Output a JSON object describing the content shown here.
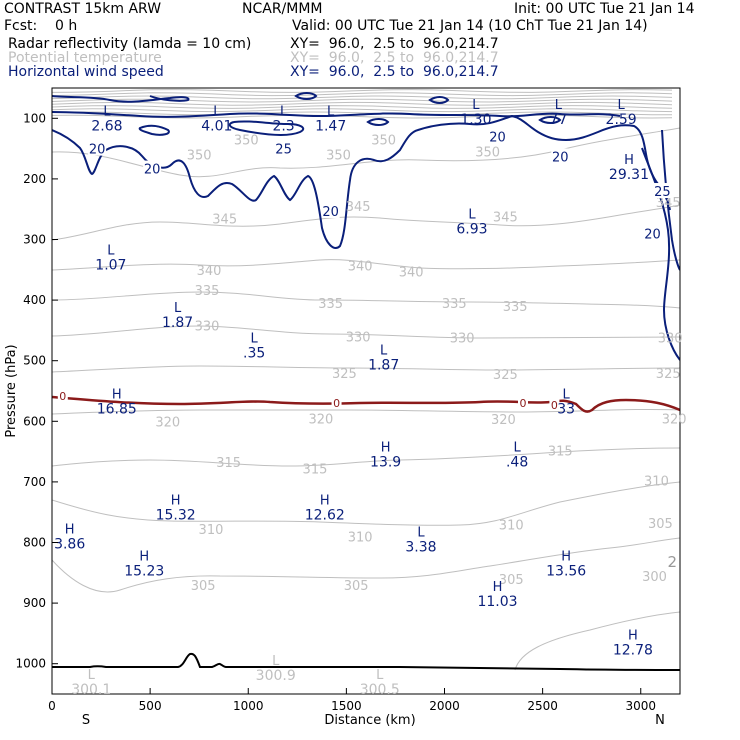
{
  "header": {
    "model": "CONTRAST 15km ARW",
    "org": "NCAR/MMM",
    "init": "Init: 00 UTC Tue 21 Jan 14",
    "fcst": "Fcst:    0 h",
    "valid": "Valid: 00 UTC Tue 21 Jan 14 (10 ChT Tue 21 Jan 14)",
    "fields": [
      {
        "name": "Radar reflectivity (lamda = 10 cm)",
        "xy": "XY=  96.0,  2.5 to  96.0,214.7",
        "color": "#000000"
      },
      {
        "name": "Potential temperature",
        "xy": "XY=  96.0,  2.5 to  96.0,214.7",
        "color": "#bfbfbf"
      },
      {
        "name": "Horizontal wind speed",
        "xy": "XY=  96.0,  2.5 to  96.0,214.7",
        "color": "#0a1f7a"
      }
    ]
  },
  "chart_data": {
    "type": "cross-section contour",
    "xlabel": "Distance (km)",
    "ylabel": "Pressure (hPa)",
    "xlim": [
      0,
      3200
    ],
    "ylim_hpa": [
      1050,
      50
    ],
    "xticks": [
      0,
      500,
      1000,
      1500,
      2000,
      2500,
      3000
    ],
    "yticks": [
      100,
      200,
      300,
      400,
      500,
      600,
      700,
      800,
      900,
      1000
    ],
    "end_labels": {
      "left": "S",
      "right": "N"
    },
    "theta_contour_labels": [
      {
        "v": "350",
        "x": 990,
        "p": 135
      },
      {
        "v": "350",
        "x": 1690,
        "p": 135
      },
      {
        "v": "350",
        "x": 750,
        "p": 160
      },
      {
        "v": "350",
        "x": 1460,
        "p": 160
      },
      {
        "v": "350",
        "x": 2220,
        "p": 155
      },
      {
        "v": "345",
        "x": 880,
        "p": 265
      },
      {
        "v": "345",
        "x": 1560,
        "p": 245
      },
      {
        "v": "345",
        "x": 2310,
        "p": 262
      },
      {
        "v": "345",
        "x": 3140,
        "p": 238
      },
      {
        "v": "340",
        "x": 800,
        "p": 350
      },
      {
        "v": "340",
        "x": 1570,
        "p": 343
      },
      {
        "v": "340",
        "x": 1830,
        "p": 353
      },
      {
        "v": "335",
        "x": 790,
        "p": 383
      },
      {
        "v": "335",
        "x": 1420,
        "p": 405
      },
      {
        "v": "335",
        "x": 2050,
        "p": 405
      },
      {
        "v": "335",
        "x": 2360,
        "p": 410
      },
      {
        "v": "330",
        "x": 790,
        "p": 442
      },
      {
        "v": "330",
        "x": 1560,
        "p": 460
      },
      {
        "v": "330",
        "x": 2090,
        "p": 462
      },
      {
        "v": "330",
        "x": 3150,
        "p": 462
      },
      {
        "v": "325",
        "x": 1490,
        "p": 520
      },
      {
        "v": "325",
        "x": 2310,
        "p": 522
      },
      {
        "v": "325",
        "x": 3140,
        "p": 520
      },
      {
        "v": "320",
        "x": 590,
        "p": 600
      },
      {
        "v": "320",
        "x": 1370,
        "p": 595
      },
      {
        "v": "320",
        "x": 2300,
        "p": 596
      },
      {
        "v": "320",
        "x": 3170,
        "p": 595
      },
      {
        "v": "315",
        "x": 900,
        "p": 667
      },
      {
        "v": "315",
        "x": 1340,
        "p": 678
      },
      {
        "v": "315",
        "x": 2590,
        "p": 648
      },
      {
        "v": "310",
        "x": 3080,
        "p": 698
      },
      {
        "v": "310",
        "x": 810,
        "p": 778
      },
      {
        "v": "310",
        "x": 1570,
        "p": 790
      },
      {
        "v": "310",
        "x": 2340,
        "p": 770
      },
      {
        "v": "305",
        "x": 3100,
        "p": 768
      },
      {
        "v": "305",
        "x": 770,
        "p": 870
      },
      {
        "v": "305",
        "x": 1550,
        "p": 870
      },
      {
        "v": "305",
        "x": 2340,
        "p": 860
      },
      {
        "v": "300",
        "x": 3070,
        "p": 855
      }
    ],
    "wind_contour_labels": [
      {
        "v": "20",
        "x": 230,
        "p": 150
      },
      {
        "v": "20",
        "x": 510,
        "p": 183
      },
      {
        "v": "25",
        "x": 1180,
        "p": 150
      },
      {
        "v": "20",
        "x": 1420,
        "p": 253
      },
      {
        "v": "20",
        "x": 2270,
        "p": 130
      },
      {
        "v": "20",
        "x": 2590,
        "p": 163
      },
      {
        "v": "25",
        "x": 3110,
        "p": 220
      },
      {
        "v": "20",
        "x": 3060,
        "p": 290
      }
    ],
    "freezing_labels": [
      {
        "v": "0",
        "x": 55,
        "p": 558
      },
      {
        "v": "0",
        "x": 1450,
        "p": 570
      },
      {
        "v": "0",
        "x": 2400,
        "p": 570
      },
      {
        "v": "0",
        "x": 2560,
        "p": 573
      }
    ],
    "extrema": [
      {
        "t": "L",
        "v": "2.68",
        "x": 280,
        "p": 95
      },
      {
        "t": "L",
        "v": "4.01",
        "x": 840,
        "p": 95
      },
      {
        "t": "L",
        "v": "2.3",
        "x": 1180,
        "p": 95
      },
      {
        "t": "L",
        "v": "1.47",
        "x": 1420,
        "p": 95
      },
      {
        "t": "L",
        "v": "1.30",
        "x": 2160,
        "p": 85
      },
      {
        "t": "L",
        "v": "77",
        "x": 2580,
        "p": 85
      },
      {
        "t": "L",
        "v": "2.59",
        "x": 2900,
        "p": 85
      },
      {
        "t": "H",
        "v": "29.31",
        "x": 2940,
        "p": 175
      },
      {
        "t": "L",
        "v": "6.93",
        "x": 2140,
        "p": 265
      },
      {
        "t": "L",
        "v": "1.07",
        "x": 300,
        "p": 325
      },
      {
        "t": "L",
        "v": "1.87",
        "x": 640,
        "p": 420
      },
      {
        "t": "L",
        "v": ".35",
        "x": 1030,
        "p": 470
      },
      {
        "t": "L",
        "v": "1.87",
        "x": 1690,
        "p": 490
      },
      {
        "t": "H",
        "v": "16.85",
        "x": 330,
        "p": 562
      },
      {
        "t": "L",
        "v": "33",
        "x": 2620,
        "p": 562
      },
      {
        "t": "H",
        "v": "13.9",
        "x": 1700,
        "p": 650
      },
      {
        "t": "L",
        "v": ".48",
        "x": 2370,
        "p": 650
      },
      {
        "t": "H",
        "v": "15.32",
        "x": 630,
        "p": 737
      },
      {
        "t": "H",
        "v": "12.62",
        "x": 1390,
        "p": 737
      },
      {
        "t": "L",
        "v": "3.38",
        "x": 1880,
        "p": 790
      },
      {
        "t": "H",
        "v": "3.86",
        "x": 90,
        "p": 785
      },
      {
        "t": "H",
        "v": "15.23",
        "x": 470,
        "p": 830
      },
      {
        "t": "H",
        "v": "13.56",
        "x": 2620,
        "p": 830
      },
      {
        "t": "H",
        "v": "11.03",
        "x": 2270,
        "p": 880
      },
      {
        "t": "H",
        "v": "12.78",
        "x": 2960,
        "p": 960
      },
      {
        "t": "L",
        "v": "300.9",
        "x": 1140,
        "p": 1002
      },
      {
        "t": "L",
        "v": "300.1",
        "x": 200,
        "p": 1025
      },
      {
        "t": "L",
        "v": "300.5",
        "x": 1670,
        "p": 1025
      }
    ],
    "right_edge_text": "2",
    "right_edge_text_color": "#999999",
    "ground_pressure_hpa": 1008
  },
  "colors": {
    "theta": "#bfbfbf",
    "wind": "#0a1f7a",
    "freezing": "#8b1a1a",
    "ground": "#000000"
  }
}
